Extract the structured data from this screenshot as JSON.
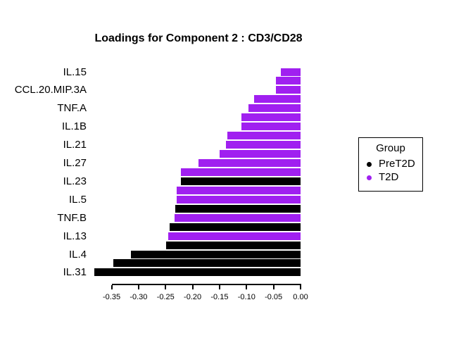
{
  "legend": {
    "title": "Group",
    "items": [
      {
        "label": "PreT2D",
        "color": "#000000"
      },
      {
        "label": "T2D",
        "color": "#A020F0"
      }
    ]
  },
  "chart_data": {
    "type": "bar",
    "orientation": "horizontal",
    "title": "Loadings for Component 2 : CD3/CD28",
    "xlabel": "",
    "ylabel": "",
    "xlim": [
      -0.35,
      0.0
    ],
    "grid": false,
    "legend_position": "right",
    "x_ticks": [
      -0.35,
      -0.3,
      -0.25,
      -0.2,
      -0.15,
      -0.1,
      -0.05,
      0.0
    ],
    "x_tick_labels": [
      "-0.35",
      "-0.30",
      "-0.25",
      "-0.20",
      "-0.15",
      "-0.10",
      "-0.05",
      "0.00"
    ],
    "group_colors": {
      "PreT2D": "#000000",
      "T2D": "#A020F0"
    },
    "bars": [
      {
        "label": "IL.15",
        "value": -0.036,
        "group": "T2D"
      },
      {
        "label": "",
        "value": -0.046,
        "group": "T2D"
      },
      {
        "label": "CCL.20.MIP.3A",
        "value": -0.046,
        "group": "T2D"
      },
      {
        "label": "",
        "value": -0.086,
        "group": "T2D"
      },
      {
        "label": "TNF.A",
        "value": -0.096,
        "group": "T2D"
      },
      {
        "label": "",
        "value": -0.11,
        "group": "T2D"
      },
      {
        "label": "IL.1B",
        "value": -0.11,
        "group": "T2D"
      },
      {
        "label": "",
        "value": -0.136,
        "group": "T2D"
      },
      {
        "label": "IL.21",
        "value": -0.138,
        "group": "T2D"
      },
      {
        "label": "",
        "value": -0.15,
        "group": "T2D"
      },
      {
        "label": "IL.27",
        "value": -0.189,
        "group": "T2D"
      },
      {
        "label": "",
        "value": -0.222,
        "group": "T2D"
      },
      {
        "label": "IL.23",
        "value": -0.222,
        "group": "PreT2D"
      },
      {
        "label": "",
        "value": -0.229,
        "group": "T2D"
      },
      {
        "label": "IL.5",
        "value": -0.23,
        "group": "T2D"
      },
      {
        "label": "",
        "value": -0.232,
        "group": "PreT2D"
      },
      {
        "label": "TNF.B",
        "value": -0.233,
        "group": "T2D"
      },
      {
        "label": "",
        "value": -0.242,
        "group": "PreT2D"
      },
      {
        "label": "IL.13",
        "value": -0.245,
        "group": "T2D"
      },
      {
        "label": "",
        "value": -0.249,
        "group": "PreT2D"
      },
      {
        "label": "IL.4",
        "value": -0.314,
        "group": "PreT2D"
      },
      {
        "label": "",
        "value": -0.347,
        "group": "PreT2D"
      },
      {
        "label": "IL.31",
        "value": -0.382,
        "group": "PreT2D"
      }
    ]
  }
}
